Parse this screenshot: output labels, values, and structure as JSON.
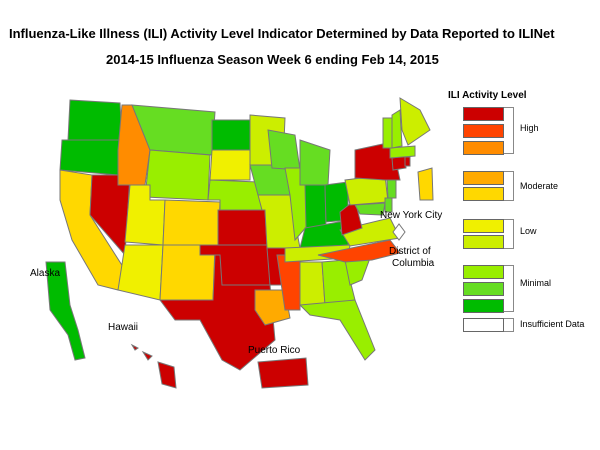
{
  "title": "Influenza-Like Illness (ILI) Activity Level Indicator Determined by Data Reported to ILINet",
  "subtitle": "2014-15  Influenza Season Week  6 ending Feb 14, 2015",
  "legend": {
    "title": "ILI Activity Level",
    "levels": [
      {
        "level": 10,
        "color": "#cc0000"
      },
      {
        "level": 9,
        "color": "#ff4400"
      },
      {
        "level": 8,
        "color": "#ff8c00"
      },
      {
        "level": 7,
        "color": "#ffaa00"
      },
      {
        "level": 6,
        "color": "#ffd800"
      },
      {
        "level": 5,
        "color": "#f0f000"
      },
      {
        "level": 4,
        "color": "#ccee00"
      },
      {
        "level": 3,
        "color": "#99ee00"
      },
      {
        "level": 2,
        "color": "#66dd22"
      },
      {
        "level": 1,
        "color": "#00bb00"
      },
      {
        "level": 0,
        "color": "#ffffff"
      }
    ],
    "groups": {
      "high": "High",
      "moderate": "Moderate",
      "low": "Low",
      "minimal": "Minimal",
      "insufficient": "Insufficient Data"
    }
  },
  "labels": {
    "alaska": "Alaska",
    "hawaii": "Hawaii",
    "puerto_rico": "Puerto Rico",
    "nyc": "New York City",
    "dc_line1": "District of",
    "dc_line2": "Columbia"
  },
  "states": {
    "WA": 1,
    "OR": 1,
    "CA": 6,
    "NV": 10,
    "ID": 8,
    "MT": 2,
    "WY": 3,
    "UT": 5,
    "AZ": 5,
    "CO": 6,
    "NM": 6,
    "ND": 1,
    "SD": 5,
    "NE": 3,
    "KS": 10,
    "OK": 10,
    "TX": 10,
    "MN": 4,
    "IA": 2,
    "MO": 4,
    "AR": 10,
    "LA": 7,
    "WI": 2,
    "IL": 3,
    "MS": 9,
    "MI": 2,
    "IN": 1,
    "KY": 1,
    "TN": 4,
    "AL": 4,
    "OH": 1,
    "WV": 10,
    "GA": 3,
    "FL": 3,
    "SC": 3,
    "NC": 9,
    "VA": 4,
    "PA": 4,
    "NY": 10,
    "NJ": 2,
    "DE": 2,
    "MD": 2,
    "VT": 3,
    "NH": 3,
    "ME": 4,
    "MA": 3,
    "CT": 10,
    "RI": 10,
    "AK": 1,
    "HI": 10,
    "PR": 10,
    "NYC": 6,
    "DC": 0
  }
}
